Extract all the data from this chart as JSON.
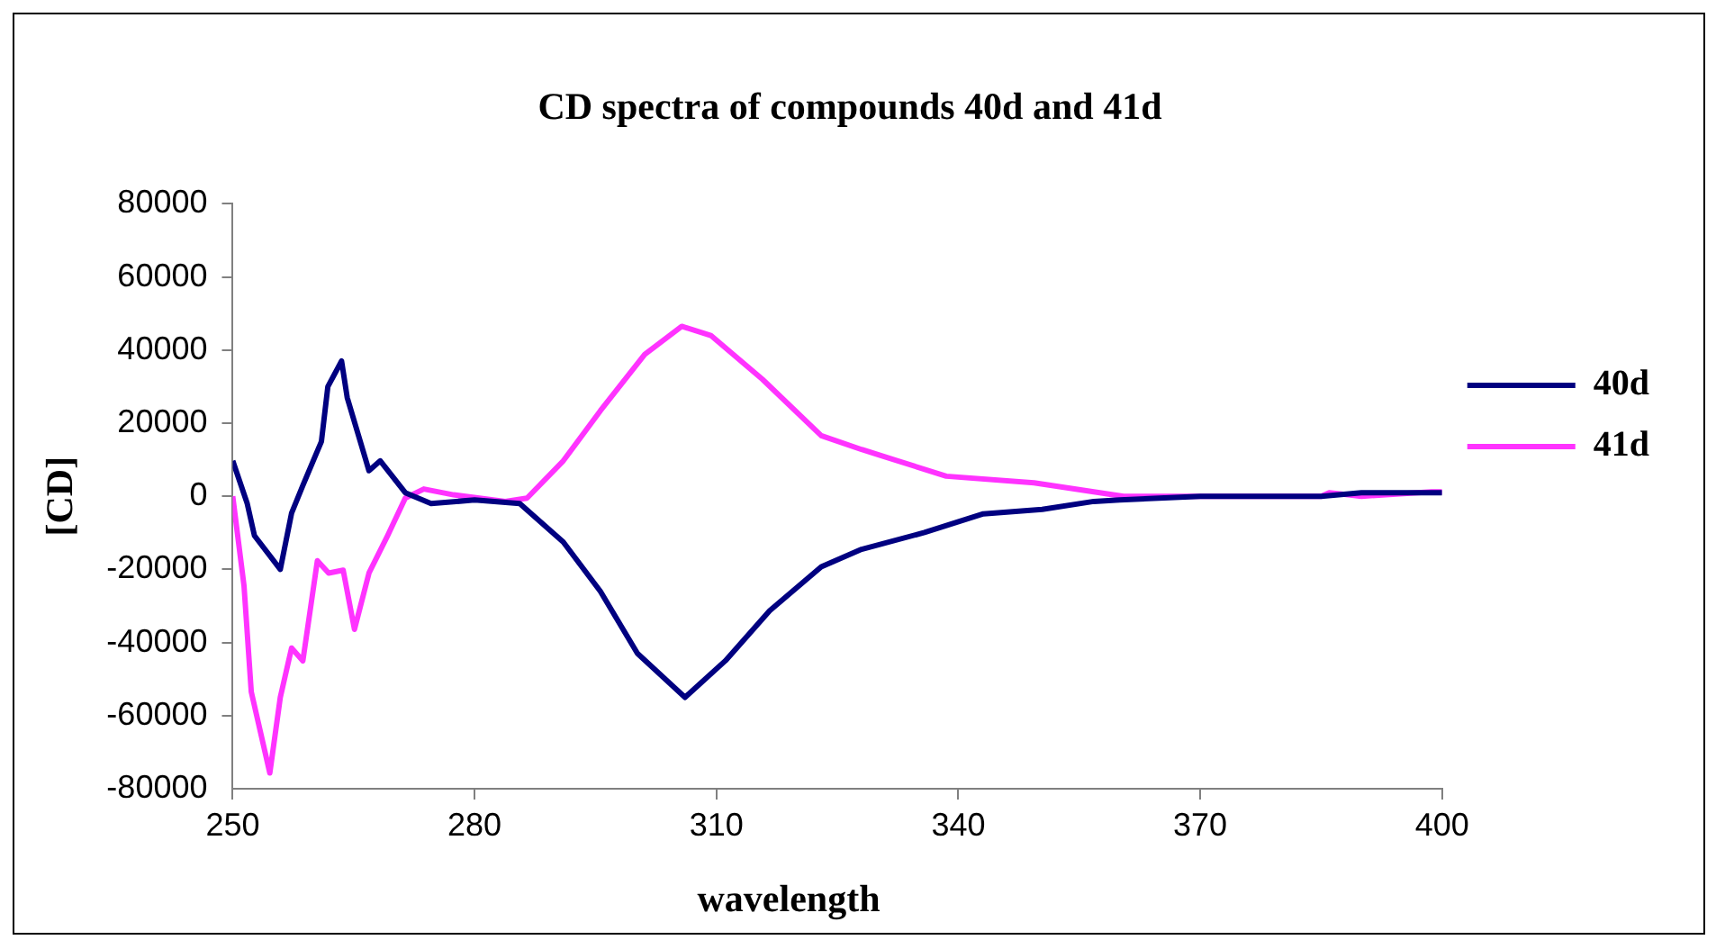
{
  "chart_data": {
    "type": "line",
    "title": "CD spectra of compounds 40d and 41d",
    "xlabel": "wavelength",
    "ylabel": "[CD]",
    "xlim": [
      250,
      400
    ],
    "xticks": [
      250,
      280,
      310,
      340,
      370,
      400
    ],
    "ylim": [
      -80000,
      80000
    ],
    "yticks": [
      -80000,
      -60000,
      -40000,
      -20000,
      0,
      20000,
      40000,
      60000,
      80000
    ],
    "grid": false,
    "legend": "right",
    "marker": "none",
    "line_style": "solid",
    "series": [
      {
        "name": "40d",
        "color": "#000080",
        "x": [
          250,
          251.8,
          252.7,
          255.9,
          257.3,
          258.7,
          261,
          261.8,
          263.5,
          264.2,
          266.9,
          268.3,
          271.4,
          274.6,
          280,
          285.6,
          291,
          295.6,
          300.2,
          306.1,
          311.1,
          316.6,
          323,
          328,
          335.8,
          343.1,
          350.4,
          356.8,
          360,
          370,
          385,
          390,
          400
        ],
        "values": [
          9700,
          -2000,
          -10800,
          -20000,
          -4600,
          3000,
          15000,
          30000,
          37000,
          27000,
          7000,
          9700,
          1000,
          -2000,
          -1000,
          -2000,
          -12500,
          -26000,
          -43000,
          -55000,
          -45000,
          -31300,
          -19300,
          -14500,
          -9900,
          -4800,
          -3600,
          -1400,
          -1000,
          0,
          0,
          1000,
          1000
        ]
      },
      {
        "name": "41d",
        "color": "#ff33ff",
        "x": [
          250,
          251.4,
          252.3,
          254.6,
          255.9,
          257.3,
          258.7,
          260.5,
          261.9,
          263.7,
          265.1,
          266.9,
          269.2,
          271.4,
          273.7,
          277.4,
          283.8,
          286.5,
          291,
          295.6,
          301.1,
          305.7,
          309.3,
          315.7,
          323,
          328,
          338.5,
          349.4,
          356.8,
          360.5,
          370,
          385,
          386,
          390,
          398.7,
          400
        ],
        "values": [
          0,
          -24500,
          -53500,
          -75700,
          -55000,
          -41500,
          -45000,
          -17600,
          -21000,
          -20200,
          -36400,
          -21000,
          -10800,
          -500,
          2000,
          400,
          -1400,
          -500,
          9700,
          23400,
          38800,
          46500,
          44000,
          32000,
          16600,
          12800,
          5500,
          3700,
          1200,
          0,
          0,
          0,
          1000,
          0,
          1200,
          1200
        ]
      }
    ]
  }
}
